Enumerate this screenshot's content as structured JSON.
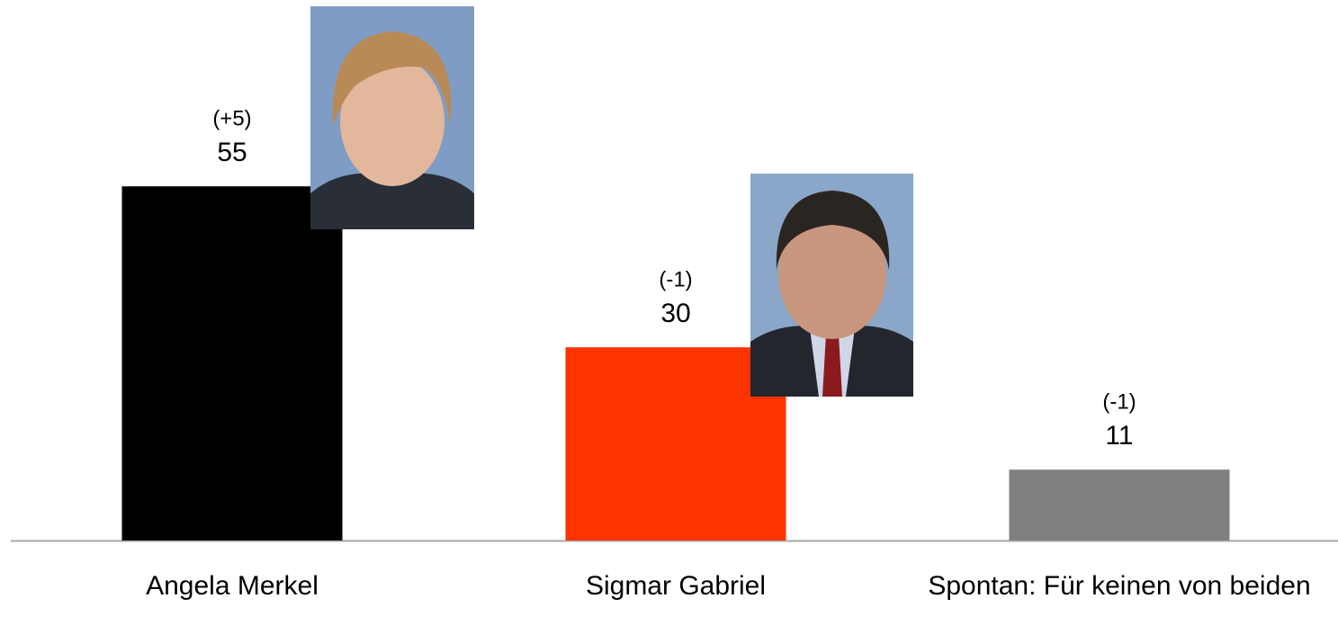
{
  "chart_data": {
    "type": "bar",
    "categories": [
      "Angela Merkel",
      "Sigmar Gabriel",
      "Spontan: Für keinen von beiden"
    ],
    "values": [
      55,
      30,
      11
    ],
    "changes": [
      "(+5)",
      "(-1)",
      "(-1)"
    ],
    "colors": [
      "#000000",
      "#ff3300",
      "#808080"
    ]
  }
}
